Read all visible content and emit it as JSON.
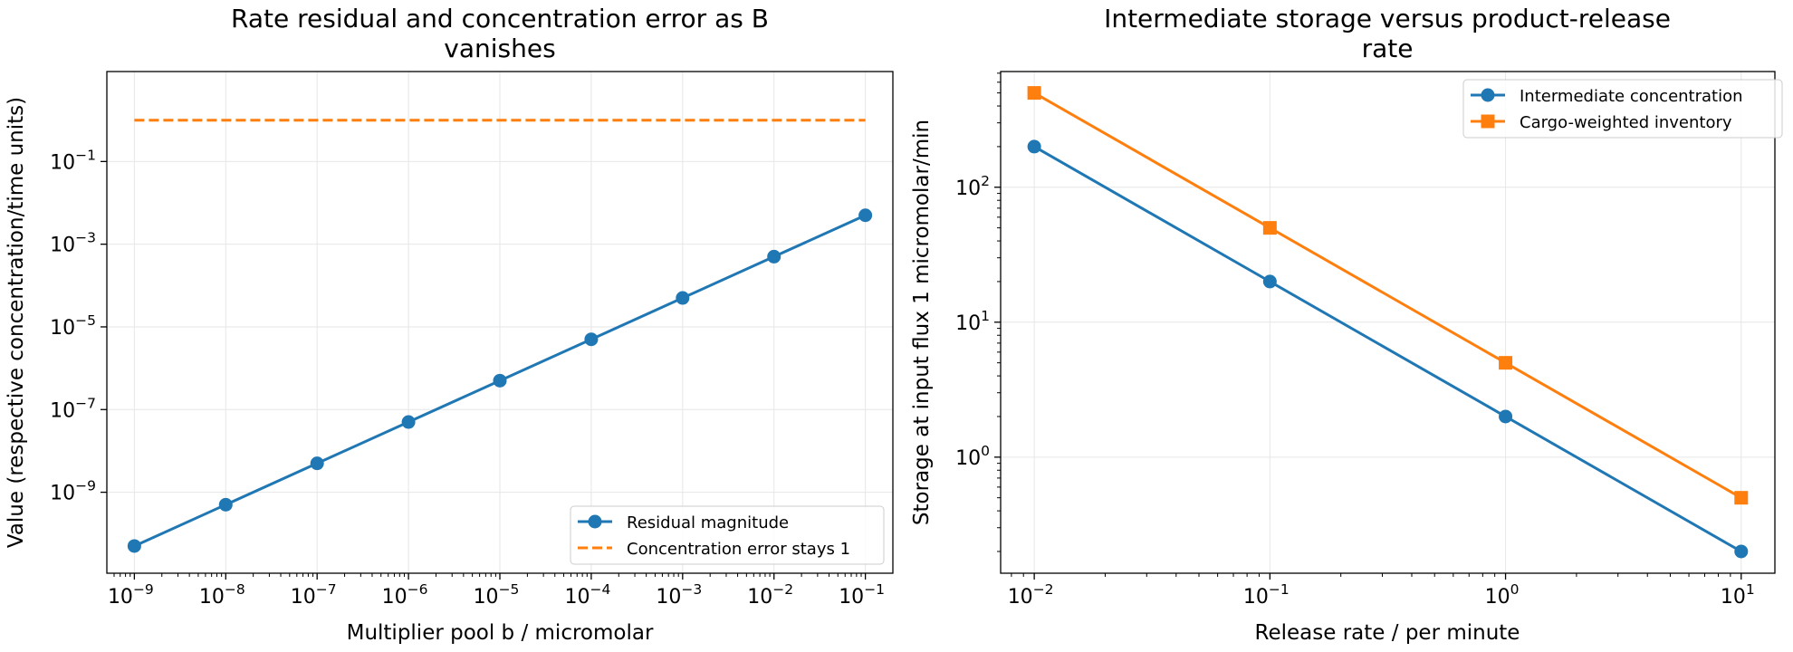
{
  "chart_data": [
    {
      "type": "line",
      "title_lines": [
        "Rate residual and concentration error as B",
        "vanishes"
      ],
      "xlabel": "Multiplier pool b / micromolar",
      "ylabel": "Value (respective concentration/time units)",
      "xscale": "log",
      "yscale": "log",
      "xlim": [
        5e-10,
        0.2
      ],
      "ylim": [
        1.1e-11,
        15
      ],
      "xticks": [
        1e-09,
        1e-08,
        1e-07,
        1e-06,
        1e-05,
        0.0001,
        0.001,
        0.01,
        0.1
      ],
      "yticks": [
        1e-09,
        1e-07,
        1e-05,
        0.001,
        0.1
      ],
      "grid": true,
      "legend_position": "lower-right",
      "series": [
        {
          "name": "Residual magnitude",
          "color": "#1f77b4",
          "style": "solid",
          "marker": "circle",
          "x": [
            1e-09,
            1e-08,
            1e-07,
            1e-06,
            1e-05,
            0.0001,
            0.001,
            0.01,
            0.1
          ],
          "y": [
            5e-11,
            5e-10,
            5e-09,
            5e-08,
            5e-07,
            5e-06,
            5e-05,
            0.0005,
            0.005
          ]
        },
        {
          "name": "Concentration error stays 1",
          "color": "#ff7f0e",
          "style": "dashed",
          "marker": "none",
          "x": [
            1e-09,
            1e-08,
            1e-07,
            1e-06,
            1e-05,
            0.0001,
            0.001,
            0.01,
            0.1
          ],
          "y": [
            1,
            1,
            1,
            1,
            1,
            1,
            1,
            1,
            1
          ]
        }
      ]
    },
    {
      "type": "line",
      "title_lines": [
        "Intermediate storage versus product-release",
        "rate"
      ],
      "xlabel": "Release rate / per minute",
      "ylabel": "Storage at input flux 1 micromolar/min",
      "xscale": "log",
      "yscale": "log",
      "xlim": [
        0.0072,
        13.9
      ],
      "ylim": [
        0.138,
        720
      ],
      "xticks": [
        0.01,
        0.1,
        1,
        10
      ],
      "yticks": [
        1,
        10,
        100
      ],
      "grid": true,
      "legend_position": "upper-right",
      "series": [
        {
          "name": "Intermediate concentration",
          "color": "#1f77b4",
          "style": "solid",
          "marker": "circle",
          "x": [
            0.01,
            0.1,
            1,
            10
          ],
          "y": [
            200,
            20,
            2,
            0.2
          ]
        },
        {
          "name": "Cargo-weighted inventory",
          "color": "#ff7f0e",
          "style": "solid",
          "marker": "square",
          "x": [
            0.01,
            0.1,
            1,
            10
          ],
          "y": [
            500,
            50,
            5,
            0.5
          ]
        }
      ]
    }
  ]
}
